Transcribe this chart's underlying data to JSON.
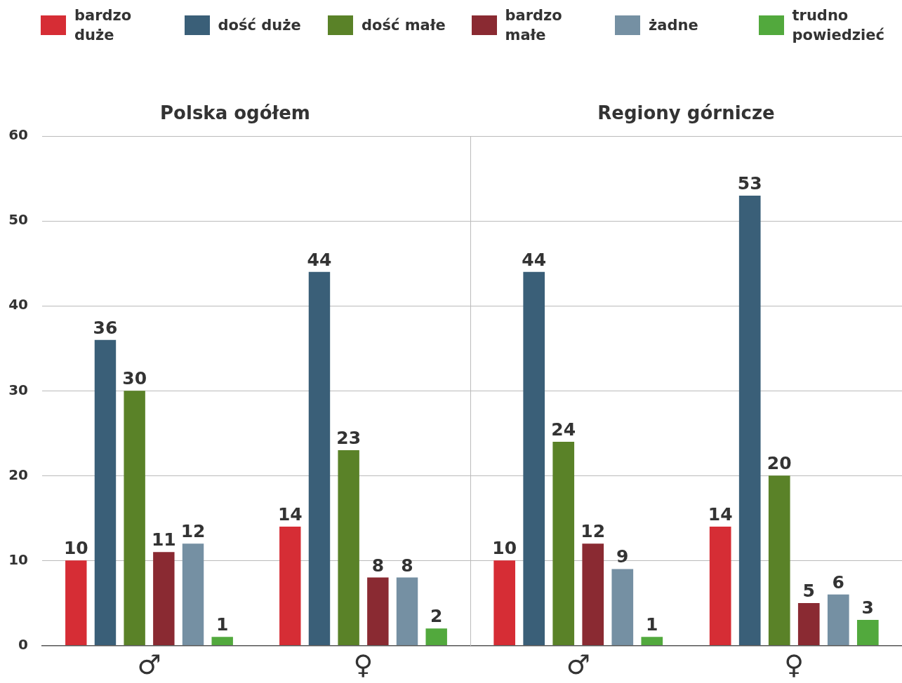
{
  "chart_data": [
    {
      "type": "bar",
      "title": "Polska ogółem",
      "categories": [
        "♂",
        "♀"
      ],
      "legend": "top",
      "grid": "y",
      "data_labels": true,
      "ylim": [
        0,
        60
      ],
      "yticks": [
        0,
        10,
        20,
        30,
        40,
        50,
        60
      ],
      "series": [
        {
          "name": "bardzo duże",
          "color": "#d62d35",
          "values": [
            10,
            14
          ]
        },
        {
          "name": "dość duże",
          "color": "#3a5f78",
          "values": [
            36,
            44
          ]
        },
        {
          "name": "dość małe",
          "color": "#5a8228",
          "values": [
            30,
            23
          ]
        },
        {
          "name": "bardzo małe",
          "color": "#8a2a32",
          "values": [
            11,
            8
          ]
        },
        {
          "name": "żadne",
          "color": "#7590a3",
          "values": [
            12,
            8
          ]
        },
        {
          "name": "trudno powiedzieć",
          "color": "#52a93d",
          "values": [
            1,
            2
          ]
        }
      ]
    },
    {
      "type": "bar",
      "title": "Regiony górnicze",
      "categories": [
        "♂",
        "♀"
      ],
      "grid": "y",
      "data_labels": true,
      "tick_labels": "x",
      "ylim": [
        0,
        60
      ],
      "yticks": [
        0,
        10,
        20,
        30,
        40,
        50,
        60
      ],
      "series": [
        {
          "color": "#d62d35",
          "values": [
            10,
            14
          ]
        },
        {
          "color": "#3a5f78",
          "values": [
            44,
            53
          ]
        },
        {
          "color": "#5a8228",
          "values": [
            24,
            20
          ]
        },
        {
          "color": "#8a2a32",
          "values": [
            12,
            5
          ]
        },
        {
          "color": "#7590a3",
          "values": [
            9,
            6
          ]
        },
        {
          "color": "#52a93d",
          "values": [
            1,
            3
          ]
        }
      ]
    }
  ]
}
